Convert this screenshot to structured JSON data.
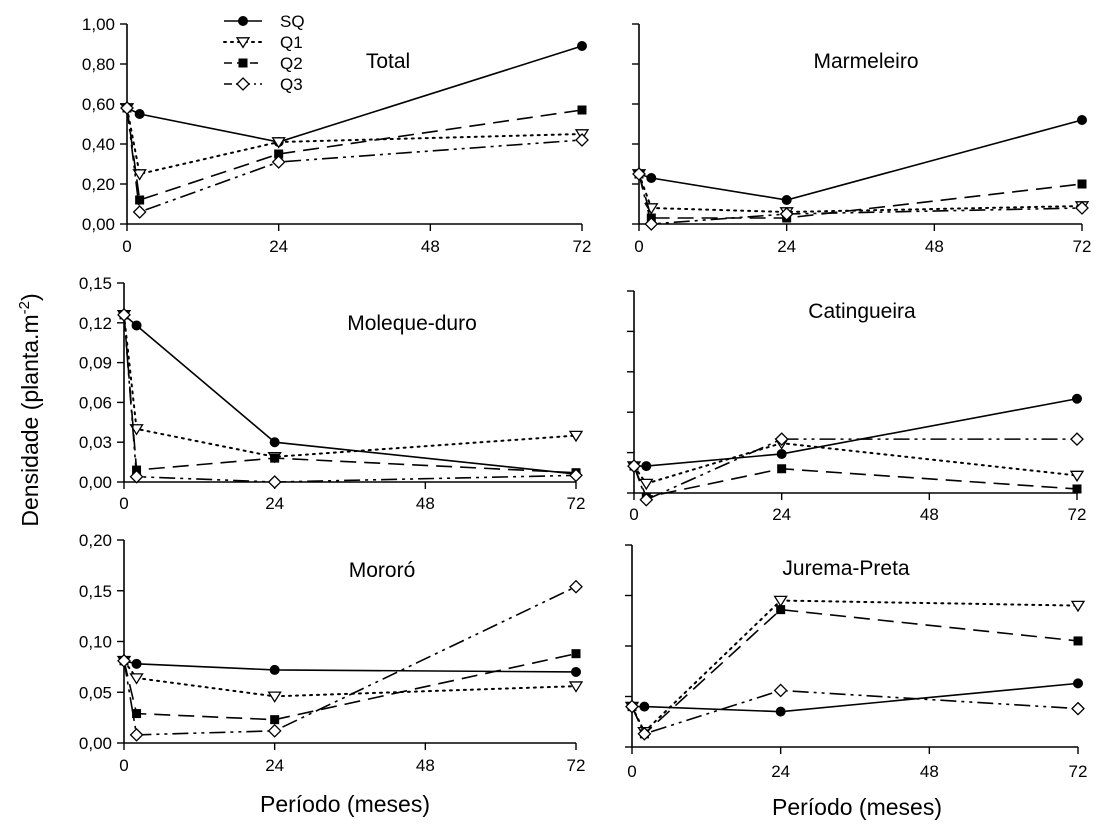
{
  "figure": {
    "ylabel_main": "Densidade (planta.m",
    "ylabel_sup": "-2",
    "ylabel_end": ")",
    "xlabel_left": "Período (meses)",
    "xlabel_right": "Período (meses)"
  },
  "legend": {
    "entries": [
      {
        "key": "SQ",
        "label": "SQ"
      },
      {
        "key": "Q1",
        "label": "Q1"
      },
      {
        "key": "Q2",
        "label": "Q2"
      },
      {
        "key": "Q3",
        "label": "Q3"
      }
    ]
  },
  "series_styles": {
    "SQ": {
      "marker": "filled-circle",
      "dash": "solid",
      "color": "#000000"
    },
    "Q1": {
      "marker": "open-triangle-down",
      "dash": "dotted",
      "color": "#000000"
    },
    "Q2": {
      "marker": "filled-square",
      "dash": "dashed",
      "color": "#000000"
    },
    "Q3": {
      "marker": "open-diamond",
      "dash": "dash-dot-dot",
      "color": "#000000"
    }
  },
  "chart_data": [
    {
      "type": "line",
      "title": "Total",
      "x": [
        0,
        2,
        24,
        72
      ],
      "xticks": [
        "0",
        "24",
        "48",
        "72"
      ],
      "ylim": [
        0,
        1.0
      ],
      "yticks": [
        "0,00",
        "0,20",
        "0,40",
        "0,60",
        "0,80",
        "1,00"
      ],
      "series": [
        {
          "name": "SQ",
          "values": [
            0.58,
            0.55,
            0.41,
            0.89
          ]
        },
        {
          "name": "Q1",
          "values": [
            0.58,
            0.25,
            0.41,
            0.45
          ]
        },
        {
          "name": "Q2",
          "values": [
            0.58,
            0.12,
            0.35,
            0.57
          ]
        },
        {
          "name": "Q3",
          "values": [
            0.58,
            0.06,
            0.31,
            0.42
          ]
        }
      ]
    },
    {
      "type": "line",
      "title": "Marmeleiro",
      "x": [
        0,
        2,
        24,
        72
      ],
      "xticks": [
        "0",
        "24",
        "48",
        "72"
      ],
      "ylim": [
        0,
        1.0
      ],
      "yticks": [
        "",
        "",
        "",
        "",
        "",
        ""
      ],
      "series": [
        {
          "name": "SQ",
          "values": [
            0.25,
            0.23,
            0.12,
            0.52
          ]
        },
        {
          "name": "Q1",
          "values": [
            0.25,
            0.08,
            0.06,
            0.09
          ]
        },
        {
          "name": "Q2",
          "values": [
            0.25,
            0.03,
            0.03,
            0.2
          ]
        },
        {
          "name": "Q3",
          "values": [
            0.25,
            0.0,
            0.05,
            0.08
          ]
        }
      ]
    },
    {
      "type": "line",
      "title": "Moleque-duro",
      "x": [
        0,
        2,
        24,
        72
      ],
      "xticks": [
        "0",
        "24",
        "48",
        "72"
      ],
      "ylim": [
        0,
        0.15
      ],
      "yticks": [
        "0,00",
        "0,03",
        "0,06",
        "0,09",
        "0,12",
        "0,15"
      ],
      "series": [
        {
          "name": "SQ",
          "values": [
            0.126,
            0.118,
            0.03,
            0.006
          ]
        },
        {
          "name": "Q1",
          "values": [
            0.126,
            0.04,
            0.019,
            0.035
          ]
        },
        {
          "name": "Q2",
          "values": [
            0.126,
            0.009,
            0.018,
            0.007
          ]
        },
        {
          "name": "Q3",
          "values": [
            0.126,
            0.004,
            0.0,
            0.005
          ]
        }
      ]
    },
    {
      "type": "line",
      "title": "Catingueira",
      "x": [
        0,
        2,
        24,
        72
      ],
      "xticks": [
        "0",
        "24",
        "48",
        "72"
      ],
      "ylim": [
        0,
        0.15
      ],
      "yticks": [
        "",
        "",
        "",
        "",
        "",
        ""
      ],
      "series": [
        {
          "name": "SQ",
          "values": [
            0.02,
            0.02,
            0.029,
            0.07
          ]
        },
        {
          "name": "Q1",
          "values": [
            0.02,
            0.007,
            0.037,
            0.013
          ]
        },
        {
          "name": "Q2",
          "values": [
            0.02,
            -0.003,
            0.018,
            0.003
          ]
        },
        {
          "name": "Q3",
          "values": [
            0.02,
            -0.005,
            0.04,
            0.04
          ]
        }
      ]
    },
    {
      "type": "line",
      "title": "Mororó",
      "x": [
        0,
        2,
        24,
        72
      ],
      "xticks": [
        "0",
        "24",
        "48",
        "72"
      ],
      "ylim": [
        0,
        0.2
      ],
      "yticks": [
        "0,00",
        "0,05",
        "0,10",
        "0,15",
        "0,20"
      ],
      "series": [
        {
          "name": "SQ",
          "values": [
            0.081,
            0.078,
            0.072,
            0.07
          ]
        },
        {
          "name": "Q1",
          "values": [
            0.081,
            0.064,
            0.046,
            0.056
          ]
        },
        {
          "name": "Q2",
          "values": [
            0.081,
            0.029,
            0.023,
            0.088
          ]
        },
        {
          "name": "Q3",
          "values": [
            0.081,
            0.008,
            0.012,
            0.154
          ]
        }
      ]
    },
    {
      "type": "line",
      "title": "Jurema-Preta",
      "x": [
        0,
        2,
        24,
        72
      ],
      "xticks": [
        "0",
        "24",
        "48",
        "72"
      ],
      "ylim": [
        0,
        0.2
      ],
      "yticks": [
        "",
        "",
        "",
        "",
        ""
      ],
      "series": [
        {
          "name": "SQ",
          "values": [
            0.04,
            0.04,
            0.035,
            0.063
          ]
        },
        {
          "name": "Q1",
          "values": [
            0.04,
            0.015,
            0.145,
            0.14
          ]
        },
        {
          "name": "Q2",
          "values": [
            0.04,
            0.013,
            0.136,
            0.105
          ]
        },
        {
          "name": "Q3",
          "values": [
            0.04,
            0.013,
            0.056,
            0.038
          ]
        }
      ]
    }
  ]
}
